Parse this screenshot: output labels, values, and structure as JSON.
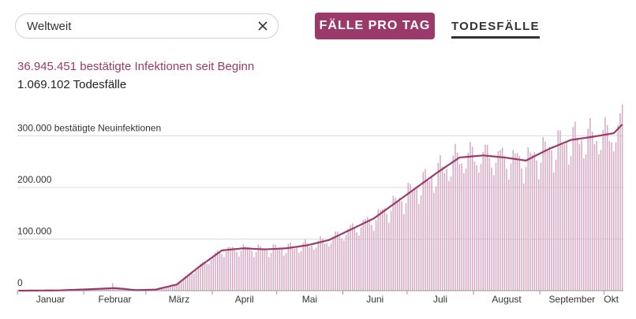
{
  "search": {
    "value": "Weltweit"
  },
  "toggle": {
    "cases_label": "FÄLLE PRO TAG",
    "deaths_label": "TODESFÄLLE"
  },
  "stats": {
    "infections": "36.945.451 bestätigte Infektionen seit Beginn",
    "deaths": "1.069.102 Todesfälle"
  },
  "colors": {
    "accent": "#9b3a6a",
    "bar": "#d6a8c1",
    "line": "#9b3a6a",
    "grid": "#d9d9d9"
  },
  "icons": {
    "clear": "close-icon"
  },
  "chart_data": {
    "type": "bar",
    "ylabel": "bestätigte Neuinfektionen",
    "ylim": [
      0,
      380000
    ],
    "yticks": [
      {
        "value": 0,
        "label": "0"
      },
      {
        "value": 100000,
        "label": "100.000"
      },
      {
        "value": 200000,
        "label": "200.000"
      },
      {
        "value": 300000,
        "label": "300.000 bestätigte Neuinfektionen"
      }
    ],
    "x_start": "2020-01-01",
    "x_end": "2020-10-09",
    "months": [
      "Januar",
      "Februar",
      "März",
      "April",
      "Mai",
      "Juni",
      "Juli",
      "August",
      "September",
      "Okt"
    ],
    "series": [
      {
        "type": "bar",
        "values": []
      },
      {
        "type": "line",
        "values": []
      }
    ],
    "avg_keypoints": [
      [
        "2020-01-01",
        0
      ],
      [
        "2020-01-20",
        500
      ],
      [
        "2020-02-05",
        3000
      ],
      [
        "2020-02-15",
        5000
      ],
      [
        "2020-02-25",
        1000
      ],
      [
        "2020-03-05",
        2000
      ],
      [
        "2020-03-15",
        12000
      ],
      [
        "2020-03-25",
        45000
      ],
      [
        "2020-04-05",
        78000
      ],
      [
        "2020-04-15",
        82000
      ],
      [
        "2020-04-25",
        80000
      ],
      [
        "2020-05-05",
        82000
      ],
      [
        "2020-05-15",
        88000
      ],
      [
        "2020-05-25",
        98000
      ],
      [
        "2020-06-05",
        120000
      ],
      [
        "2020-06-15",
        140000
      ],
      [
        "2020-06-25",
        170000
      ],
      [
        "2020-07-05",
        200000
      ],
      [
        "2020-07-15",
        230000
      ],
      [
        "2020-07-25",
        258000
      ],
      [
        "2020-08-05",
        262000
      ],
      [
        "2020-08-15",
        258000
      ],
      [
        "2020-08-25",
        252000
      ],
      [
        "2020-09-05",
        275000
      ],
      [
        "2020-09-15",
        292000
      ],
      [
        "2020-09-25",
        298000
      ],
      [
        "2020-10-05",
        305000
      ],
      [
        "2020-10-09",
        322000
      ]
    ]
  }
}
